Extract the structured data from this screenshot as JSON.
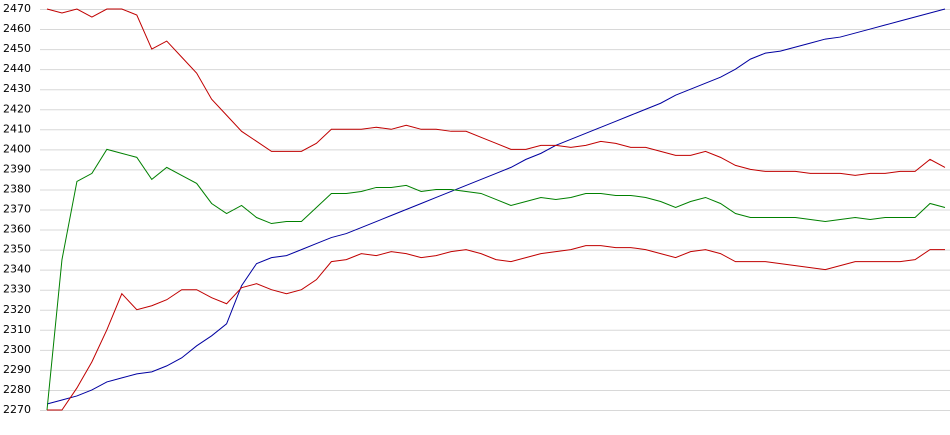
{
  "chart_data": {
    "type": "line",
    "ylim": [
      2270,
      2470
    ],
    "yticks": [
      2270,
      2280,
      2290,
      2300,
      2310,
      2320,
      2330,
      2340,
      2350,
      2360,
      2370,
      2380,
      2390,
      2400,
      2410,
      2420,
      2430,
      2440,
      2450,
      2460,
      2470
    ],
    "grid": true,
    "series": [
      {
        "color": "#0000a0",
        "values": [
          2273,
          2275,
          2277,
          2280,
          2284,
          2286,
          2288,
          2289,
          2292,
          2296,
          2302,
          2307,
          2313,
          2332,
          2343,
          2346,
          2347,
          2350,
          2353,
          2356,
          2358,
          2361,
          2364,
          2367,
          2370,
          2373,
          2376,
          2379,
          2382,
          2385,
          2388,
          2391,
          2395,
          2398,
          2402,
          2405,
          2408,
          2411,
          2414,
          2417,
          2420,
          2423,
          2427,
          2430,
          2433,
          2436,
          2440,
          2445,
          2448,
          2449,
          2451,
          2453,
          2455,
          2456,
          2458,
          2460,
          2462,
          2464,
          2466,
          2468,
          2470
        ]
      },
      {
        "color": "#008000",
        "values": [
          2270,
          2345,
          2384,
          2388,
          2400,
          2398,
          2396,
          2385,
          2391,
          2387,
          2383,
          2373,
          2368,
          2372,
          2366,
          2363,
          2364,
          2364,
          2371,
          2378,
          2378,
          2379,
          2381,
          2381,
          2382,
          2379,
          2380,
          2380,
          2379,
          2378,
          2375,
          2372,
          2374,
          2376,
          2375,
          2376,
          2378,
          2378,
          2377,
          2377,
          2376,
          2374,
          2371,
          2374,
          2376,
          2373,
          2368,
          2366,
          2366,
          2366,
          2366,
          2365,
          2364,
          2365,
          2366,
          2365,
          2366,
          2366,
          2366,
          2373,
          2371
        ]
      },
      {
        "color": "#c00000",
        "values": [
          2470,
          2468,
          2470,
          2466,
          2470,
          2470,
          2467,
          2450,
          2454,
          2446,
          2438,
          2425,
          2417,
          2409,
          2404,
          2399,
          2399,
          2399,
          2403,
          2410,
          2410,
          2410,
          2411,
          2410,
          2412,
          2410,
          2410,
          2409,
          2409,
          2406,
          2403,
          2400,
          2400,
          2402,
          2402,
          2401,
          2402,
          2404,
          2403,
          2401,
          2401,
          2399,
          2397,
          2397,
          2399,
          2396,
          2392,
          2390,
          2389,
          2389,
          2389,
          2388,
          2388,
          2388,
          2387,
          2388,
          2388,
          2389,
          2389,
          2395,
          2391
        ]
      },
      {
        "color": "#c00000",
        "values": [
          2270,
          2270,
          2281,
          2294,
          2310,
          2328,
          2320,
          2322,
          2325,
          2330,
          2330,
          2326,
          2323,
          2331,
          2333,
          2330,
          2328,
          2330,
          2335,
          2344,
          2345,
          2348,
          2347,
          2349,
          2348,
          2346,
          2347,
          2349,
          2350,
          2348,
          2345,
          2344,
          2346,
          2348,
          2349,
          2350,
          2352,
          2352,
          2351,
          2351,
          2350,
          2348,
          2346,
          2349,
          2350,
          2348,
          2344,
          2344,
          2344,
          2343,
          2342,
          2341,
          2340,
          2342,
          2344,
          2344,
          2344,
          2344,
          2345,
          2350,
          2350
        ]
      }
    ]
  }
}
